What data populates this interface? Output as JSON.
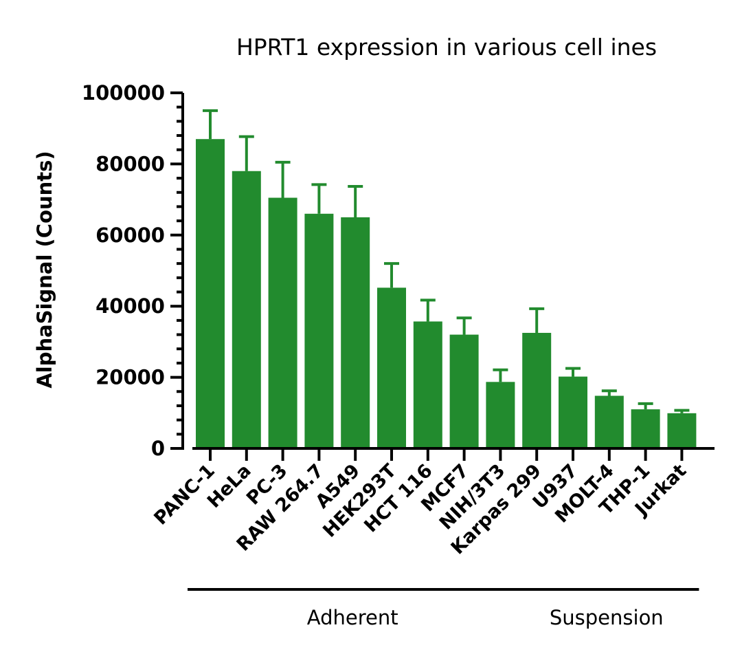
{
  "chart_data": {
    "type": "bar",
    "title": "HPRT1 expression in various cell ines",
    "ylabel": "AlphaSignal (Counts)",
    "xlabel": "",
    "ylim": [
      0,
      100000
    ],
    "yticks": [
      0,
      20000,
      40000,
      60000,
      80000,
      100000
    ],
    "ytick_labels": [
      "0",
      "20000",
      "40000",
      "60000",
      "80000",
      "100000"
    ],
    "minor_ticks_per_major": 5,
    "grid": false,
    "legend": "none",
    "bar_color": "#228B2E",
    "categories": [
      "PANC-1",
      "HeLa",
      "PC-3",
      "RAW 264.7",
      "A549",
      "HEK293T",
      "HCT 116",
      "MCF7",
      "NIH/3T3",
      "Karpas 299",
      "U937",
      "MOLT-4",
      "THP-1",
      "Jurkat"
    ],
    "values": [
      87000,
      78000,
      70500,
      66000,
      65000,
      45200,
      35700,
      32000,
      18700,
      32500,
      20200,
      14800,
      11000,
      9900
    ],
    "error_upper": [
      8000,
      9700,
      10000,
      8200,
      8700,
      6800,
      6000,
      4700,
      3400,
      6800,
      2300,
      1400,
      1600,
      800
    ],
    "groups": [
      {
        "label": "Adherent",
        "categories": [
          "PANC-1",
          "HeLa",
          "PC-3",
          "RAW 264.7",
          "A549",
          "HEK293T",
          "HCT 116",
          "MCF7",
          "NIH/3T3"
        ]
      },
      {
        "label": "Suspension",
        "categories": [
          "Karpas 299",
          "U937",
          "MOLT-4",
          "THP-1",
          "Jurkat"
        ]
      }
    ]
  }
}
